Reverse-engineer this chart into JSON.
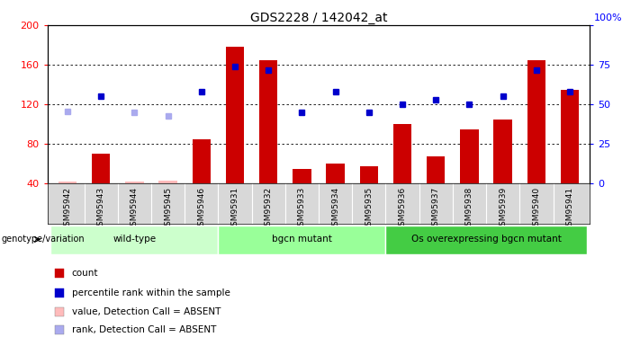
{
  "title": "GDS2228 / 142042_at",
  "samples": [
    "GSM95942",
    "GSM95943",
    "GSM95944",
    "GSM95945",
    "GSM95946",
    "GSM95931",
    "GSM95932",
    "GSM95933",
    "GSM95934",
    "GSM95935",
    "GSM95936",
    "GSM95937",
    "GSM95938",
    "GSM95939",
    "GSM95940",
    "GSM95941"
  ],
  "bar_values": [
    42,
    70,
    42,
    43,
    85,
    178,
    165,
    55,
    60,
    58,
    100,
    68,
    95,
    105,
    165,
    135
  ],
  "bar_absent": [
    true,
    false,
    true,
    true,
    false,
    false,
    false,
    false,
    false,
    false,
    false,
    false,
    false,
    false,
    false,
    false
  ],
  "rank_values": [
    null,
    128,
    null,
    null,
    133,
    158,
    155,
    112,
    133,
    112,
    120,
    125,
    120,
    128,
    155,
    133
  ],
  "rank_absent": [
    113,
    null,
    112,
    108,
    null,
    null,
    null,
    null,
    null,
    null,
    null,
    null,
    null,
    null,
    null,
    null
  ],
  "groups": [
    {
      "label": "wild-type",
      "start": 0,
      "end": 5,
      "color": "#ccffcc"
    },
    {
      "label": "bgcn mutant",
      "start": 5,
      "end": 10,
      "color": "#99ff99"
    },
    {
      "label": "Os overexpressing bgcn mutant",
      "start": 10,
      "end": 16,
      "color": "#44cc44"
    }
  ],
  "ylim_left": [
    40,
    200
  ],
  "ylim_right": [
    0,
    100
  ],
  "yticks_left": [
    40,
    80,
    120,
    160,
    200
  ],
  "yticks_right": [
    0,
    25,
    50,
    75,
    100
  ],
  "bar_color_present": "#cc0000",
  "bar_color_absent": "#ffbbbb",
  "rank_color_present": "#0000cc",
  "rank_color_absent": "#aaaaee",
  "legend_items": [
    {
      "label": "count",
      "color": "#cc0000"
    },
    {
      "label": "percentile rank within the sample",
      "color": "#0000cc"
    },
    {
      "label": "value, Detection Call = ABSENT",
      "color": "#ffbbbb"
    },
    {
      "label": "rank, Detection Call = ABSENT",
      "color": "#aaaaee"
    }
  ],
  "genotype_label": "genotype/variation",
  "background_color": "#ffffff",
  "xtick_bg": "#d8d8d8"
}
